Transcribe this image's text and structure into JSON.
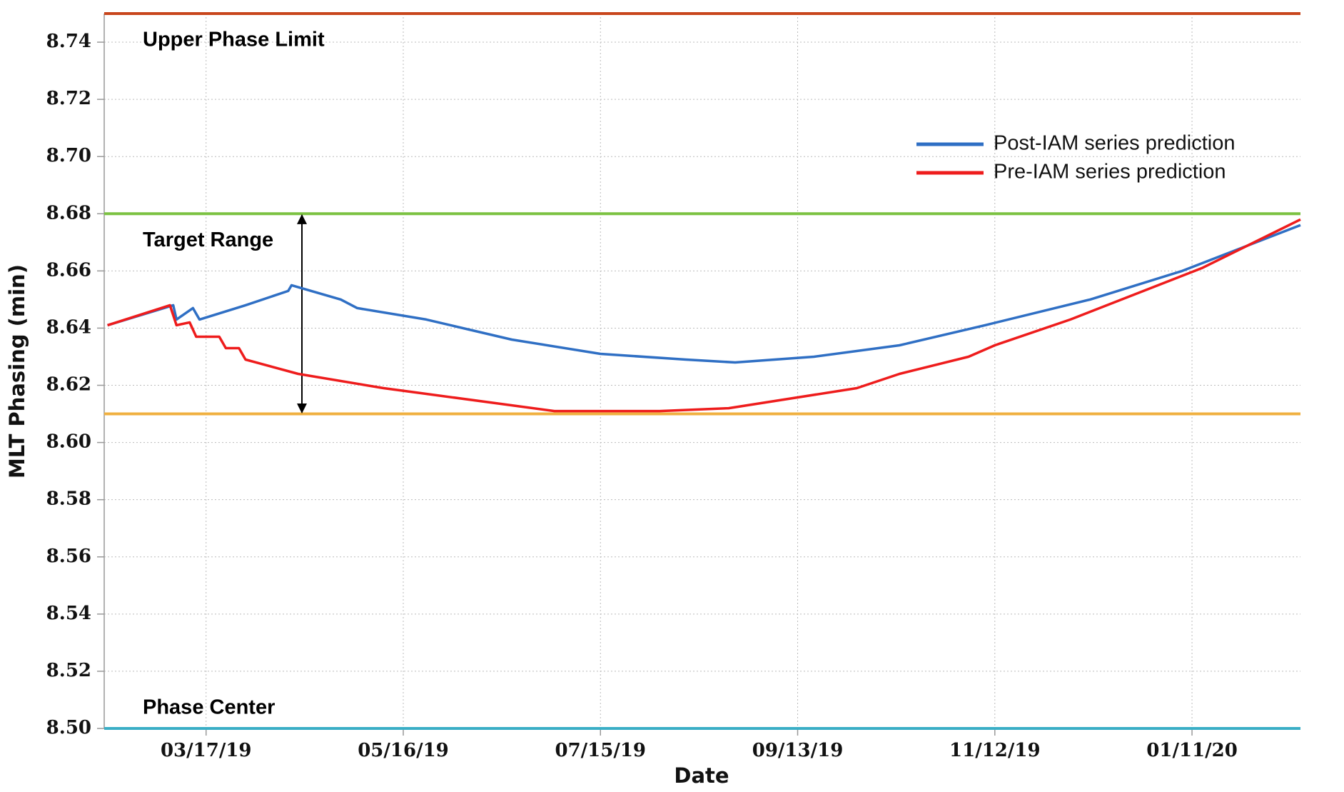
{
  "chart_data": {
    "type": "line",
    "xlabel": "Date",
    "ylabel": "MLT Phasing (min)",
    "xlim": [
      "02/14/19",
      "02/13/20"
    ],
    "xticks": [
      "03/17/19",
      "05/16/19",
      "07/15/19",
      "09/13/19",
      "11/12/19",
      "01/11/20"
    ],
    "ylim": [
      8.5,
      8.75
    ],
    "yticks": [
      {
        "value": 8.5,
        "label": "8.50"
      },
      8.52,
      8.54,
      8.56,
      8.58,
      {
        "value": 8.6,
        "label": "8.60"
      },
      8.62,
      8.64,
      8.66,
      8.68,
      {
        "value": 8.7,
        "label": "8.70"
      },
      8.72,
      8.74
    ],
    "grid": true,
    "legend": "upper right",
    "series": [
      {
        "name": "Post-IAM series prediction",
        "color": "#2f6fc4",
        "x": [
          "02/15/19",
          "03/07/19",
          "03/08/19",
          "03/13/19",
          "03/15/19",
          "03/29/19",
          "04/11/19",
          "04/12/19",
          "04/27/19",
          "05/02/19",
          "05/23/19",
          "06/18/19",
          "07/15/19",
          "08/10/19",
          "08/25/19",
          "09/18/19",
          "10/14/19",
          "11/09/19",
          "12/11/19",
          "01/08/20",
          "02/13/20"
        ],
        "values": [
          8.641,
          8.648,
          8.643,
          8.647,
          8.643,
          8.648,
          8.653,
          8.655,
          8.65,
          8.647,
          8.643,
          8.636,
          8.631,
          8.629,
          8.628,
          8.63,
          8.634,
          8.641,
          8.65,
          8.66,
          8.676
        ]
      },
      {
        "name": "Pre-IAM series prediction",
        "color": "#ee1c1c",
        "x": [
          "02/15/19",
          "03/06/19",
          "03/08/19",
          "03/12/19",
          "03/14/19",
          "03/21/19",
          "03/23/19",
          "03/27/19",
          "03/29/19",
          "04/14/19",
          "05/10/19",
          "05/23/19",
          "07/01/19",
          "08/02/19",
          "08/23/19",
          "10/01/19",
          "10/14/19",
          "11/04/19",
          "11/12/19",
          "12/05/19",
          "01/14/20",
          "02/13/20"
        ],
        "values": [
          8.641,
          8.648,
          8.641,
          8.642,
          8.637,
          8.637,
          8.633,
          8.633,
          8.629,
          8.624,
          8.619,
          8.617,
          8.611,
          8.611,
          8.612,
          8.619,
          8.624,
          8.63,
          8.634,
          8.643,
          8.661,
          8.678
        ]
      }
    ],
    "reference_lines": [
      {
        "label": "Upper Phase Limit",
        "value": 8.75,
        "color": "#c8461c"
      },
      {
        "label": "Target Range",
        "value": 8.68,
        "color": "#7cc242"
      },
      {
        "value": 8.61,
        "color": "#f0b040"
      },
      {
        "label": "Phase Center",
        "value": 8.5,
        "color": "#3aaec6"
      }
    ]
  }
}
